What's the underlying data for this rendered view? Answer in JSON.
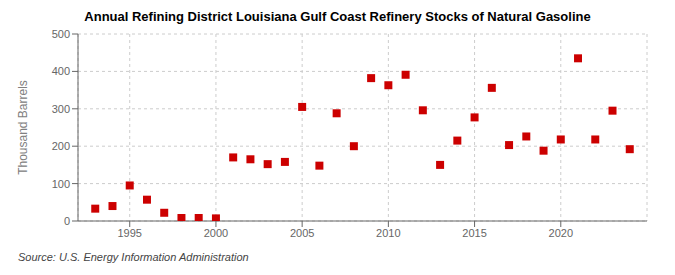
{
  "chart_data": {
    "type": "scatter",
    "title": "Annual Refining District Louisiana Gulf Coast Refinery Stocks of Natural Gasoline",
    "ylabel": "Thousand Barrels",
    "annotations": [
      "Source: U.S. Energy Information Administration"
    ],
    "x": [
      1993,
      1994,
      1995,
      1996,
      1997,
      1998,
      1999,
      2000,
      2001,
      2002,
      2003,
      2004,
      2005,
      2006,
      2007,
      2008,
      2009,
      2010,
      2011,
      2012,
      2013,
      2014,
      2015,
      2016,
      2017,
      2018,
      2019,
      2020,
      2021,
      2022,
      2023,
      2024
    ],
    "values": [
      33,
      40,
      95,
      57,
      22,
      8,
      8,
      7,
      170,
      165,
      152,
      158,
      305,
      148,
      288,
      200,
      382,
      363,
      391,
      296,
      150,
      215,
      277,
      356,
      203,
      226,
      188,
      218,
      435,
      218,
      295,
      192
    ],
    "color": "#cc0000",
    "marker": "square",
    "xlim": [
      1992,
      2025
    ],
    "xticks": [
      1995,
      2000,
      2005,
      2010,
      2015,
      2020
    ],
    "ylim": [
      0,
      500
    ],
    "yticks": [
      0,
      100,
      200,
      300,
      400,
      500
    ],
    "grid": true
  }
}
